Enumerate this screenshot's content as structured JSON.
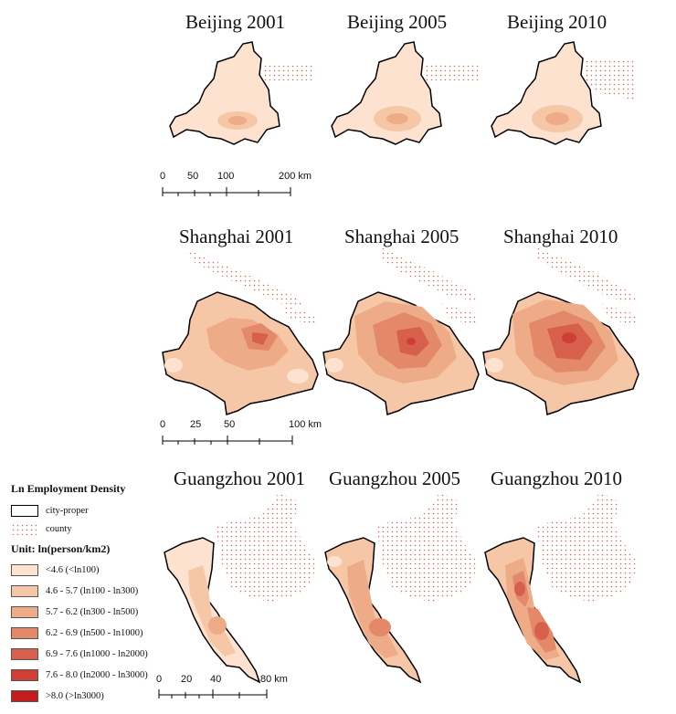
{
  "maps": [
    {
      "id": "bj2001",
      "title": "Beijing 2001",
      "city": "beijing",
      "year": 2001
    },
    {
      "id": "bj2005",
      "title": "Beijing 2005",
      "city": "beijing",
      "year": 2005
    },
    {
      "id": "bj2010",
      "title": "Beijing 2010",
      "city": "beijing",
      "year": 2010
    },
    {
      "id": "sh2001",
      "title": "Shanghai 2001",
      "city": "shanghai",
      "year": 2001
    },
    {
      "id": "sh2005",
      "title": "Shanghai 2005",
      "city": "shanghai",
      "year": 2005
    },
    {
      "id": "sh2010",
      "title": "Shanghai 2010",
      "city": "shanghai",
      "year": 2010
    },
    {
      "id": "gz2001",
      "title": "Guangzhou 2001",
      "city": "guangzhou",
      "year": 2001
    },
    {
      "id": "gz2005",
      "title": "Guangzhou 2005",
      "city": "guangzhou",
      "year": 2005
    },
    {
      "id": "gz2010",
      "title": "Guangzhou 2010",
      "city": "guangzhou",
      "year": 2010
    }
  ],
  "scalebars": {
    "beijing": {
      "labels": [
        "0",
        "50",
        "100",
        "200 km"
      ]
    },
    "shanghai": {
      "labels": [
        "0",
        "25",
        "50",
        "100 km"
      ]
    },
    "guangzhou": {
      "labels": [
        "0",
        "20",
        "40",
        "80 km"
      ]
    }
  },
  "legend": {
    "title": "Ln Employment Density",
    "city_proper_label": "city-proper",
    "county_label": "county",
    "unit_label": "Unit: ln(person/km2)",
    "classes": [
      {
        "label": "<4.6 (<ln100)",
        "color": "#fde3cf"
      },
      {
        "label": "4.6 - 5.7 (ln100 - ln300)",
        "color": "#f6c7a7"
      },
      {
        "label": "5.7 - 6.2 (ln300 - ln500)",
        "color": "#eeab88"
      },
      {
        "label": "6.2 - 6.9 (ln500 - ln1000)",
        "color": "#e3896a"
      },
      {
        "label": "6.9 - 7.6 (ln1000 - ln2000)",
        "color": "#d6604c"
      },
      {
        "label": "7.6 - 8.0 (ln2000 - ln3000)",
        "color": "#cf3f36"
      },
      {
        "label": ">8.0 (>ln3000)",
        "color": "#c31d1d"
      }
    ],
    "county_dot_color": "#e0614a"
  }
}
